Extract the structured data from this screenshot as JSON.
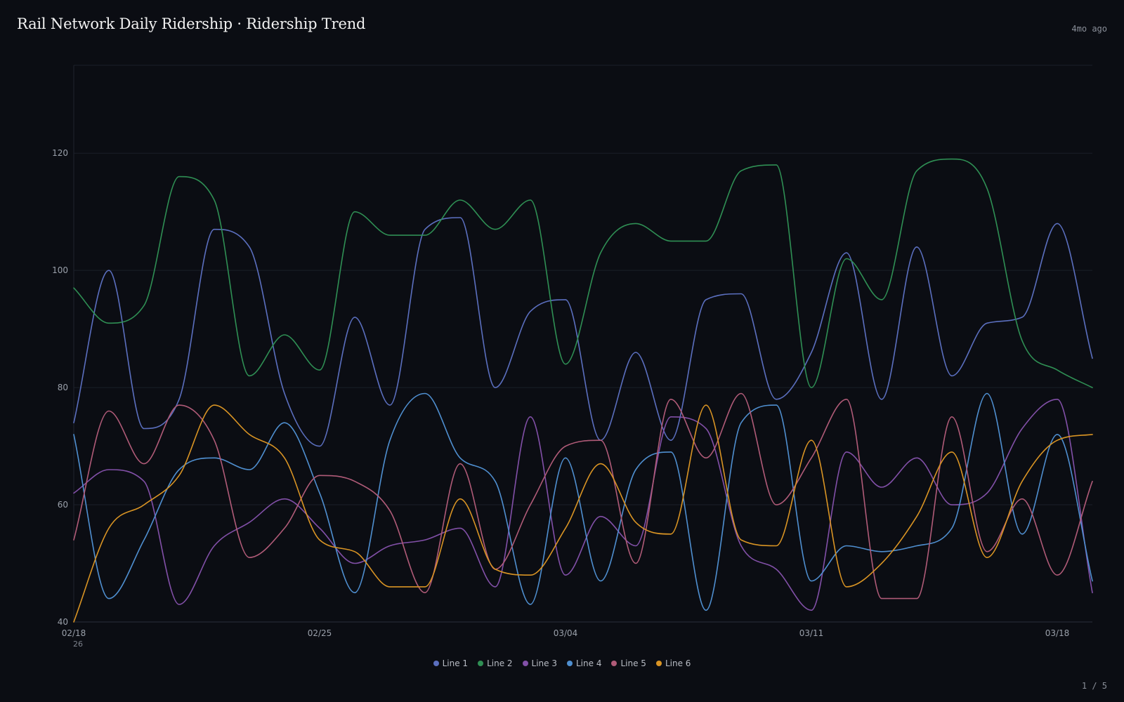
{
  "header": {
    "title": "Rail Network Daily Ridership · Ridership Trend",
    "timestamp": "4mo ago"
  },
  "footer": {
    "page_indicator": "1 / 5"
  },
  "chart_data": {
    "type": "line",
    "title": "Rail Network Daily Ridership · Ridership Trend",
    "xlabel": "",
    "ylabel": "",
    "ylim": [
      40,
      135
    ],
    "yticks": [
      40,
      60,
      80,
      100,
      120
    ],
    "x_dates": [
      "02/18",
      "02/19",
      "02/20",
      "02/21",
      "02/22",
      "02/23",
      "02/24",
      "02/25",
      "02/26",
      "02/27",
      "02/28",
      "03/01",
      "03/02",
      "03/03",
      "03/04",
      "03/05",
      "03/06",
      "03/07",
      "03/08",
      "03/09",
      "03/10",
      "03/11",
      "03/12",
      "03/13",
      "03/14",
      "03/15",
      "03/16",
      "03/17",
      "03/18",
      "03/19"
    ],
    "xticks": [
      {
        "label": "02/18",
        "sub": "26",
        "index": 0
      },
      {
        "label": "02/25",
        "sub": "",
        "index": 7
      },
      {
        "label": "03/04",
        "sub": "",
        "index": 14
      },
      {
        "label": "03/11",
        "sub": "",
        "index": 21
      },
      {
        "label": "03/18",
        "sub": "",
        "index": 28
      }
    ],
    "grid": true,
    "legend_position": "bottom-center",
    "series": [
      {
        "name": "Line 1",
        "color": "#5b6fbf",
        "values": [
          74,
          100,
          73,
          78,
          107,
          104,
          79,
          70,
          92,
          77,
          107,
          109,
          80,
          93,
          95,
          71,
          86,
          71,
          95,
          96,
          78,
          86,
          103,
          78,
          104,
          82,
          91,
          92,
          108,
          85
        ]
      },
      {
        "name": "Line 2",
        "color": "#2f8f54",
        "values": [
          97,
          91,
          94,
          116,
          112,
          82,
          89,
          83,
          110,
          106,
          106,
          112,
          107,
          112,
          84,
          103,
          108,
          105,
          105,
          117,
          118,
          80,
          102,
          95,
          117,
          119,
          114,
          88,
          83,
          80
        ]
      },
      {
        "name": "Line 3",
        "color": "#8250a8",
        "values": [
          62,
          66,
          64,
          43,
          53,
          57,
          61,
          56,
          50,
          53,
          54,
          56,
          46,
          75,
          48,
          58,
          53,
          75,
          73,
          53,
          49,
          42,
          69,
          63,
          68,
          60,
          62,
          73,
          78,
          45
        ]
      },
      {
        "name": "Line 4",
        "color": "#4f8fd0",
        "values": [
          72,
          44,
          54,
          66,
          68,
          66,
          74,
          62,
          45,
          71,
          79,
          68,
          64,
          43,
          68,
          47,
          66,
          69,
          42,
          74,
          77,
          47,
          53,
          52,
          53,
          56,
          79,
          55,
          72,
          47
        ]
      },
      {
        "name": "Line 5",
        "color": "#b05b78",
        "values": [
          54,
          76,
          67,
          77,
          71,
          51,
          56,
          65,
          64,
          59,
          45,
          67,
          49,
          60,
          70,
          71,
          50,
          78,
          68,
          79,
          60,
          68,
          78,
          44,
          44,
          75,
          52,
          61,
          48,
          64
        ]
      },
      {
        "name": "Line 6",
        "color": "#d99424",
        "values": [
          40,
          56,
          60,
          65,
          77,
          72,
          68,
          54,
          52,
          46,
          46,
          61,
          49,
          48,
          56,
          67,
          57,
          55,
          77,
          54,
          53,
          71,
          46,
          50,
          58,
          69,
          51,
          64,
          71,
          72
        ]
      }
    ]
  }
}
